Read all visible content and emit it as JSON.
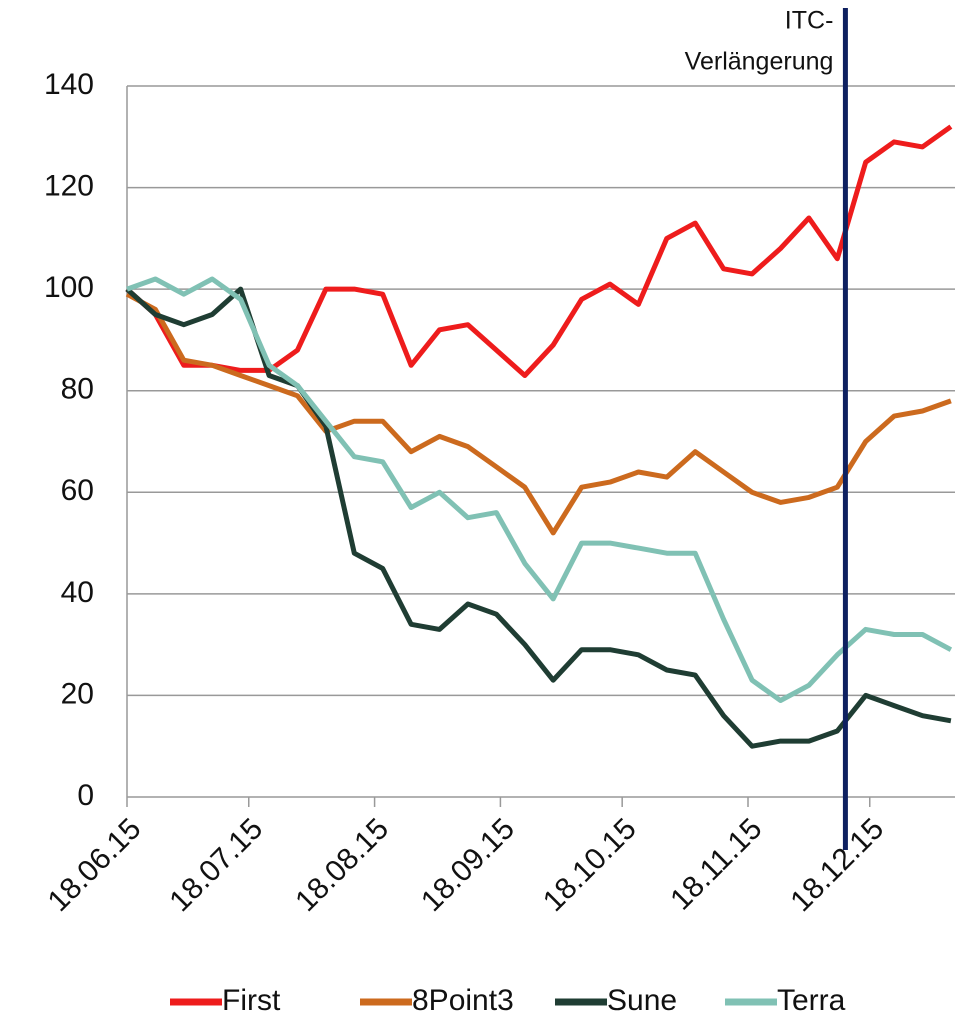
{
  "chart_data": {
    "type": "line",
    "x": [
      "18.06.15",
      "25.06.15",
      "02.07.15",
      "09.07.15",
      "16.07.15",
      "23.07.15",
      "30.07.15",
      "06.08.15",
      "13.08.15",
      "20.08.15",
      "27.08.15",
      "03.09.15",
      "10.09.15",
      "17.09.15",
      "24.09.15",
      "01.10.15",
      "08.10.15",
      "15.10.15",
      "22.10.15",
      "29.10.15",
      "05.11.15",
      "12.11.15",
      "19.11.15",
      "26.11.15",
      "03.12.15",
      "10.12.15",
      "17.12.15",
      "24.12.15",
      "31.12.15",
      "07.01.16"
    ],
    "series": [
      {
        "name": "First",
        "color": "#ee1c1c",
        "values": [
          100,
          95,
          85,
          85,
          84,
          84,
          88,
          100,
          100,
          99,
          85,
          92,
          93,
          88,
          83,
          89,
          98,
          101,
          97,
          110,
          113,
          104,
          103,
          108,
          114,
          106,
          125,
          129,
          128,
          132
        ]
      },
      {
        "name": "8Point3",
        "color": "#cc6a1e",
        "values": [
          99,
          96,
          86,
          85,
          83,
          81,
          79,
          72,
          74,
          74,
          68,
          71,
          69,
          65,
          61,
          52,
          61,
          62,
          64,
          63,
          68,
          64,
          60,
          58,
          59,
          61,
          70,
          75,
          76,
          78
        ]
      },
      {
        "name": "Sune",
        "color": "#1f3d33",
        "values": [
          100,
          95,
          93,
          95,
          100,
          83,
          81,
          73,
          48,
          45,
          34,
          33,
          38,
          36,
          30,
          23,
          29,
          29,
          28,
          25,
          24,
          16,
          10,
          11,
          11,
          13,
          20,
          18,
          16,
          15
        ]
      },
      {
        "name": "Terra",
        "color": "#80c1b4",
        "values": [
          100,
          102,
          99,
          102,
          98,
          85,
          81,
          74,
          67,
          66,
          57,
          60,
          55,
          56,
          46,
          39,
          50,
          50,
          49,
          48,
          48,
          35,
          23,
          19,
          22,
          28,
          33,
          32,
          32,
          29
        ]
      }
    ],
    "xlim": [
      "18.06.15",
      "08.01.16"
    ],
    "xticks": [
      "18.06.15",
      "18.07.15",
      "18.08.15",
      "18.09.15",
      "18.10.15",
      "18.11.15",
      "18.12.15"
    ],
    "ylim": [
      0,
      140
    ],
    "yticks": [
      0,
      20,
      40,
      60,
      80,
      100,
      120,
      140
    ],
    "grid": true,
    "legend": "bottom",
    "annotation": {
      "x": "12.12.15",
      "text": [
        "ITC-",
        "Verlängerung"
      ],
      "color": "#0e2060"
    }
  }
}
